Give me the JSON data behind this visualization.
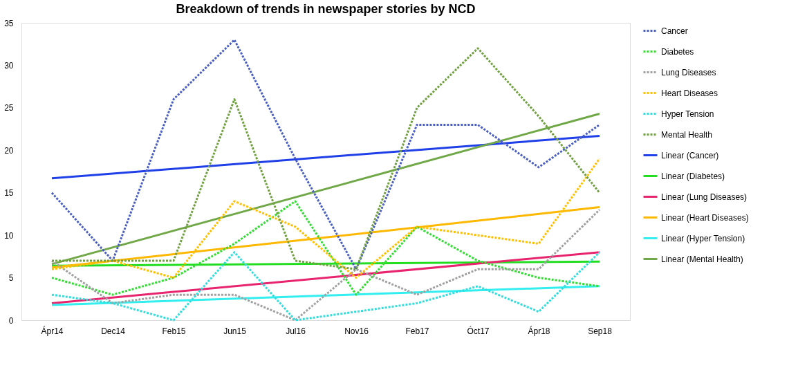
{
  "chart_data": {
    "type": "line",
    "title": "Breakdown of trends in newspaper stories by NCD",
    "categories": [
      "Ápr14",
      "Dec14",
      "Feb15",
      "Jun15",
      "Jul16",
      "Nov16",
      "Feb17",
      "Óct17",
      "Ápr18",
      "Sep18"
    ],
    "ylim": [
      0,
      35
    ],
    "yticks": [
      0,
      5,
      10,
      15,
      20,
      25,
      30,
      35
    ],
    "grid": false,
    "legend": "right",
    "marker": "none",
    "series": [
      {
        "name": "Cancer",
        "color": "#4a5fc0",
        "line_style": "dotted",
        "values": [
          15,
          7,
          26,
          33,
          19,
          6,
          23,
          23,
          18,
          23
        ]
      },
      {
        "name": "Diabetes",
        "color": "#33dd33",
        "line_style": "dotted",
        "values": [
          5,
          3,
          5,
          9,
          14,
          3,
          11,
          7,
          5,
          4
        ]
      },
      {
        "name": "Lung Diseases",
        "color": "#a0a0a0",
        "line_style": "dotted",
        "values": [
          7,
          2,
          3,
          3,
          0,
          6,
          3,
          6,
          6,
          13
        ]
      },
      {
        "name": "Heart Diseases",
        "color": "#ffc000",
        "line_style": "dotted",
        "values": [
          6,
          7,
          5,
          14,
          11,
          5,
          11,
          10,
          9,
          19
        ]
      },
      {
        "name": "Hyper Tension",
        "color": "#33dddd",
        "line_style": "dotted",
        "values": [
          3,
          2,
          0,
          8,
          0,
          1,
          2,
          4,
          1,
          8
        ]
      },
      {
        "name": "Mental Health",
        "color": "#70a040",
        "line_style": "dotted",
        "values": [
          7,
          7,
          7,
          26,
          7,
          6,
          25,
          32,
          24,
          15
        ]
      },
      {
        "name": "Linear (Cancer)",
        "color": "#1f3fe8",
        "line_style": "solid",
        "x": [
          "Ápr14",
          "Sep18"
        ],
        "values": [
          16.7,
          21.7
        ]
      },
      {
        "name": "Linear (Diabetes)",
        "color": "#22dd22",
        "line_style": "solid",
        "x": [
          "Ápr14",
          "Sep18"
        ],
        "values": [
          6.4,
          6.9
        ]
      },
      {
        "name": "Linear (Lung Diseases)",
        "color": "#e8246e",
        "line_style": "solid",
        "x": [
          "Ápr14",
          "Sep18"
        ],
        "values": [
          2.0,
          8.0
        ]
      },
      {
        "name": "Linear (Heart Diseases)",
        "color": "#ffb800",
        "line_style": "solid",
        "x": [
          "Ápr14",
          "Sep18"
        ],
        "values": [
          6.2,
          13.3
        ]
      },
      {
        "name": "Linear (Hyper Tension)",
        "color": "#33eeee",
        "line_style": "solid",
        "x": [
          "Ápr14",
          "Sep18"
        ],
        "values": [
          1.8,
          4.0
        ]
      },
      {
        "name": "Linear (Mental Health)",
        "color": "#70a848",
        "line_style": "solid",
        "x": [
          "Ápr14",
          "Sep18"
        ],
        "values": [
          6.6,
          24.3
        ]
      }
    ]
  }
}
